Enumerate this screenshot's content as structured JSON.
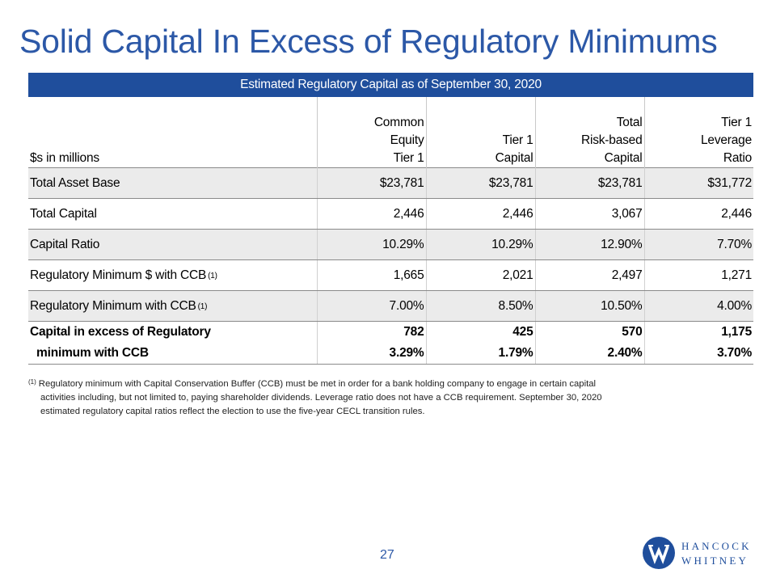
{
  "title": "Solid Capital In Excess of Regulatory Minimums",
  "table": {
    "banner": "Estimated Regulatory Capital as of September 30, 2020",
    "row_header_label": "$s in millions",
    "columns": [
      {
        "lines": [
          "Common",
          "Equity",
          "Tier 1"
        ]
      },
      {
        "lines": [
          "Tier 1",
          "Capital"
        ]
      },
      {
        "lines": [
          "Total",
          "Risk-based",
          "Capital"
        ]
      },
      {
        "lines": [
          "Tier 1",
          "Leverage",
          "Ratio"
        ]
      }
    ],
    "rows": [
      {
        "label": "Total Asset Base",
        "sup": "",
        "shaded": true,
        "values": [
          "$23,781",
          "$23,781",
          "$23,781",
          "$31,772"
        ]
      },
      {
        "label": "Total Capital",
        "sup": "",
        "shaded": false,
        "values": [
          "2,446",
          "2,446",
          "3,067",
          "2,446"
        ]
      },
      {
        "label": "Capital Ratio",
        "sup": "",
        "shaded": true,
        "values": [
          "10.29%",
          "10.29%",
          "12.90%",
          "7.70%"
        ]
      },
      {
        "label": "Regulatory Minimum $ with CCB",
        "sup": "(1)",
        "shaded": false,
        "values": [
          "1,665",
          "2,021",
          "2,497",
          "1,271"
        ]
      },
      {
        "label": "Regulatory Minimum with CCB",
        "sup": "(1)",
        "shaded": true,
        "values": [
          "7.00%",
          "8.50%",
          "10.50%",
          "4.00%"
        ]
      }
    ],
    "excess": {
      "label_line1": "Capital in excess of Regulatory",
      "label_line2": "minimum with CCB",
      "amounts": [
        "782",
        "425",
        "570",
        "1,175"
      ],
      "ratios": [
        "3.29%",
        "1.79%",
        "2.40%",
        "3.70%"
      ]
    }
  },
  "footnote": {
    "marker": "(1)",
    "lines": [
      "Regulatory minimum with Capital Conservation Buffer (CCB) must be met in order for a bank holding company to engage in certain capital",
      "activities including, but not limited to, paying shareholder dividends. Leverage ratio does not have a CCB requirement. September 30, 2020",
      "estimated regulatory capital ratios reflect the election to use the five-year CECL transition rules."
    ]
  },
  "page_number": "27",
  "logo": {
    "line1": "HANCOCK",
    "line2": "WHITNEY",
    "icon": "hancock-whitney-w-icon",
    "color": "#1f4e9c"
  }
}
